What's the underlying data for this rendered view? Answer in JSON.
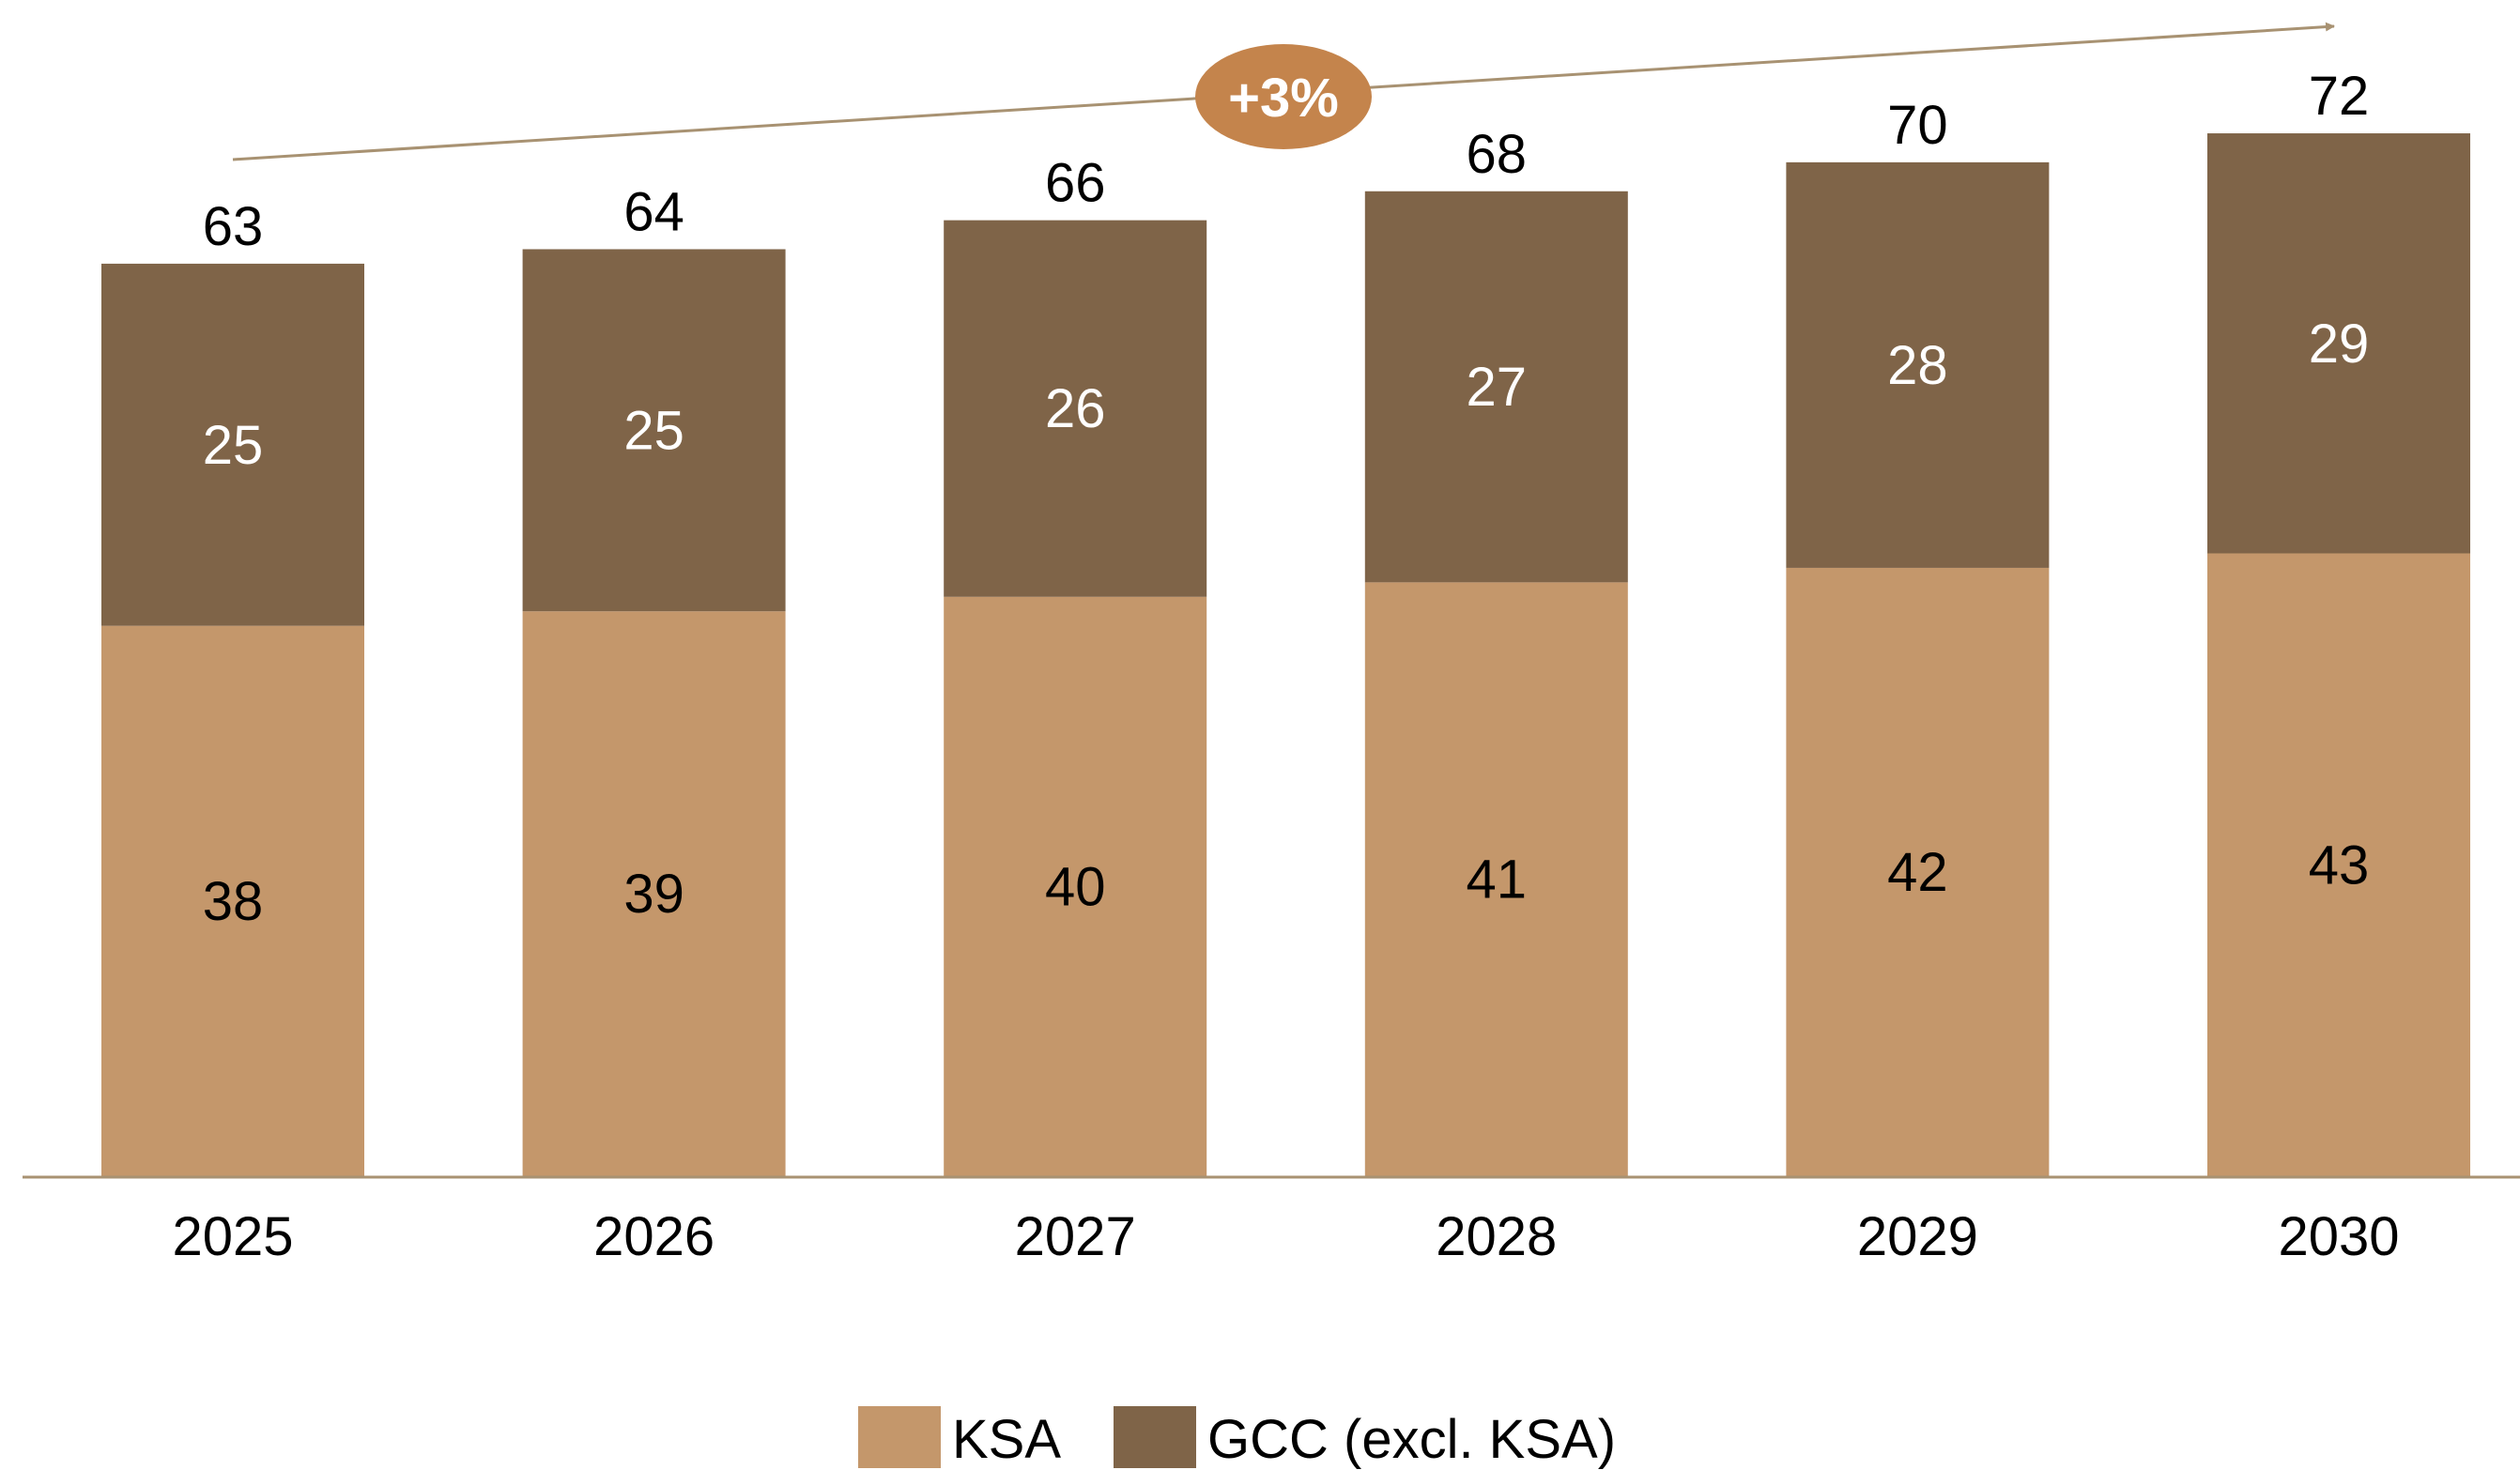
{
  "chart_data": {
    "type": "bar",
    "stacked": true,
    "categories": [
      "2025",
      "2026",
      "2027",
      "2028",
      "2029",
      "2030"
    ],
    "series": [
      {
        "name": "KSA",
        "values": [
          38,
          39,
          40,
          41,
          42,
          43
        ],
        "color": "#C4976B",
        "label_color": "#000000"
      },
      {
        "name": "GCC (excl. KSA)",
        "values": [
          25,
          25,
          26,
          27,
          28,
          29
        ],
        "color": "#7F6448",
        "label_color": "#ffffff"
      }
    ],
    "totals": [
      63,
      64,
      66,
      68,
      70,
      72
    ],
    "annotation": {
      "text": "+3%",
      "color": "#C4844C",
      "arrow_color": "#A89272"
    },
    "axis_color": "#A89272",
    "ylim": [
      0,
      80
    ],
    "grid": false,
    "legend": "bottom-center"
  }
}
